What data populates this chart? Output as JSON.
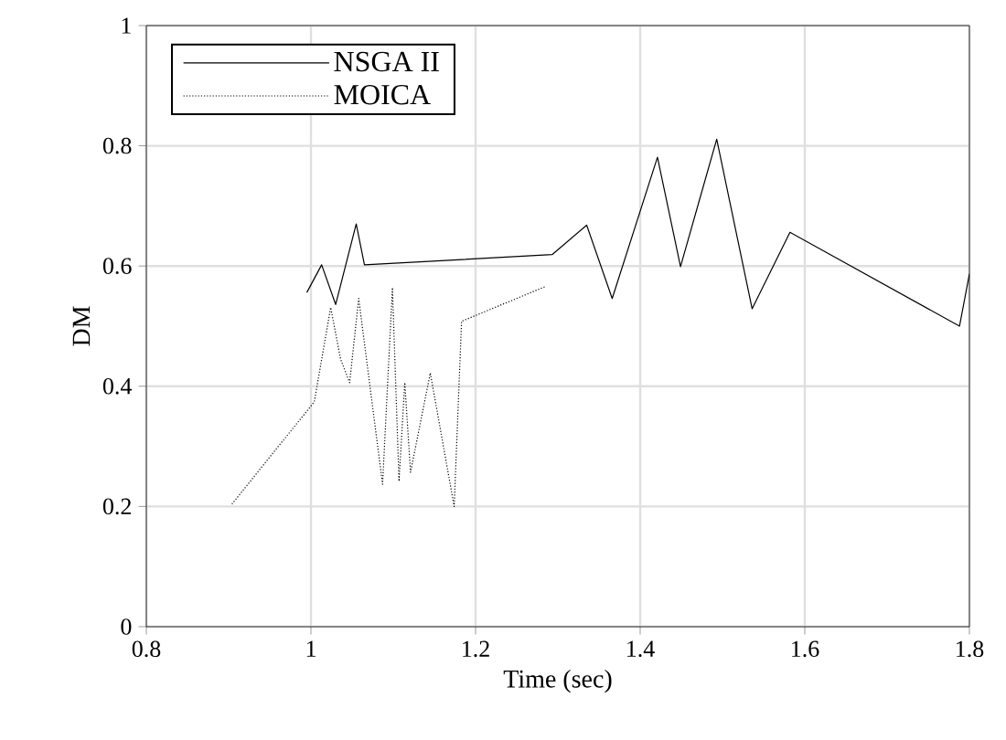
{
  "chart_data": {
    "type": "line",
    "xlabel": "Time (sec)",
    "ylabel": "DM",
    "xlim": [
      0.8,
      1.8
    ],
    "xticks": [
      0.8,
      1,
      1.2,
      1.4,
      1.6,
      1.8
    ],
    "ylim": [
      0,
      1
    ],
    "yticks": [
      0,
      0.2,
      0.4,
      0.6,
      0.8,
      1
    ],
    "grid": true,
    "legend": "top left",
    "marker": "none",
    "series": [
      {
        "name": "NSGA II",
        "color": "#000000",
        "line_style": "solid",
        "x": [
          0.995,
          1.013,
          1.03,
          1.055,
          1.065,
          1.293,
          1.335,
          1.366,
          1.421,
          1.449,
          1.493,
          1.536,
          1.582,
          1.788,
          1.8
        ],
        "values": [
          0.556,
          0.602,
          0.536,
          0.67,
          0.602,
          0.619,
          0.668,
          0.546,
          0.781,
          0.599,
          0.811,
          0.529,
          0.656,
          0.5,
          0.587
        ]
      },
      {
        "name": "MOICA",
        "color": "#000000",
        "line_style": "dotted",
        "x": [
          0.904,
          1.004,
          1.024,
          1.036,
          1.047,
          1.058,
          1.087,
          1.099,
          1.107,
          1.114,
          1.121,
          1.145,
          1.174,
          1.183,
          1.285
        ],
        "values": [
          0.204,
          0.374,
          0.531,
          0.445,
          0.406,
          0.546,
          0.237,
          0.564,
          0.242,
          0.406,
          0.257,
          0.422,
          0.2,
          0.508,
          0.566
        ]
      }
    ]
  }
}
